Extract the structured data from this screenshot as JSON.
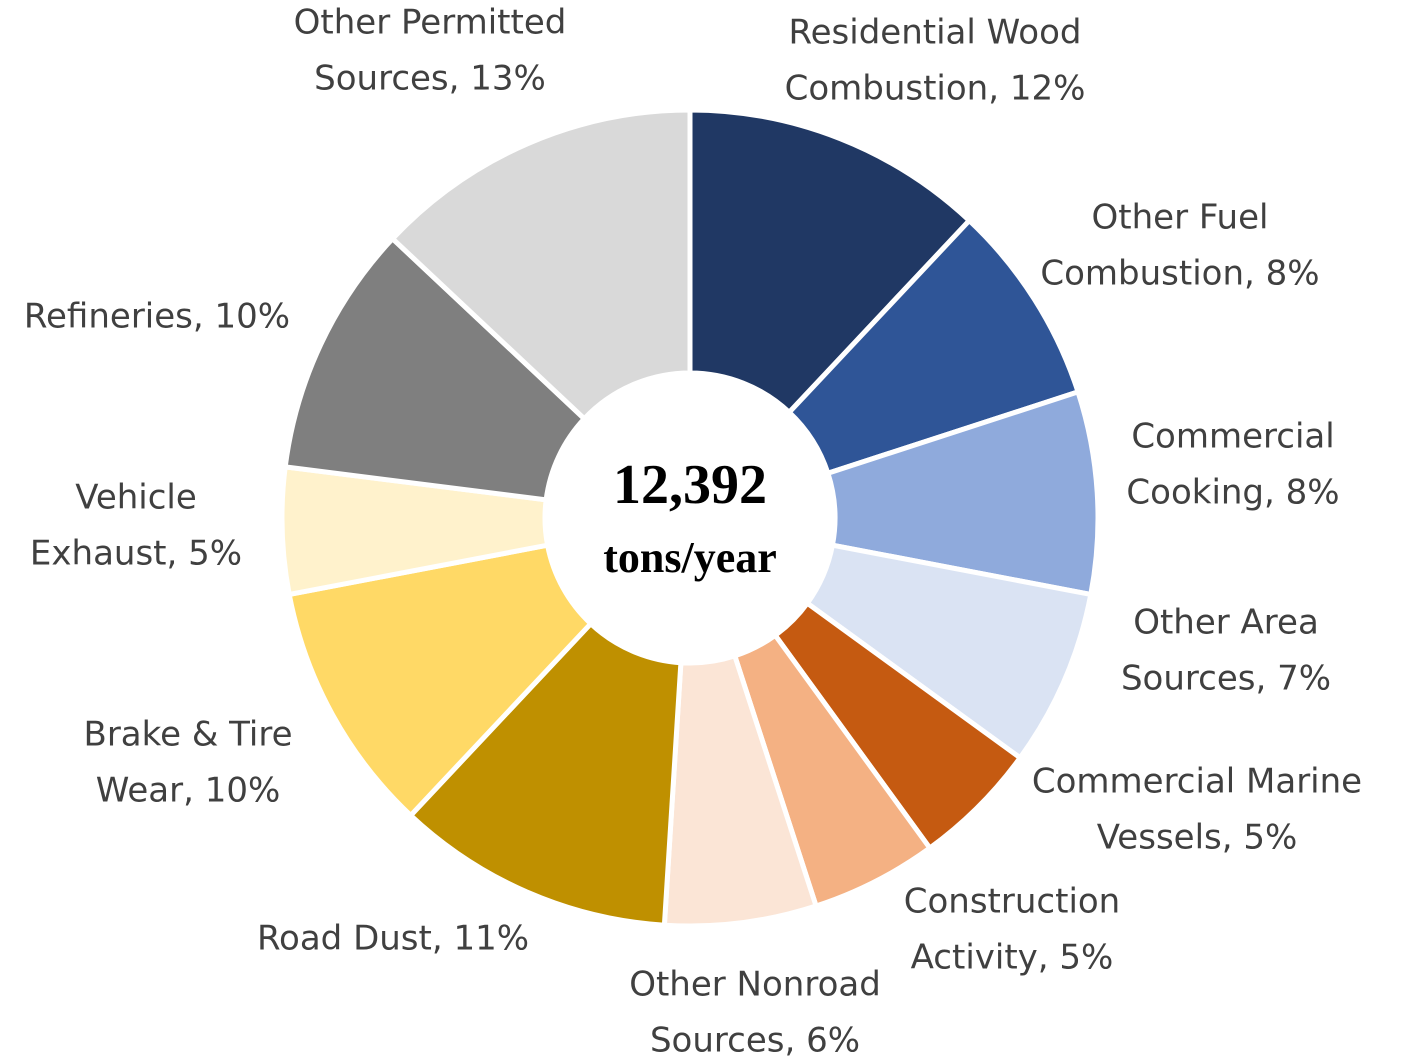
{
  "chart_data": {
    "type": "donut",
    "center_text": [
      "12,392",
      "tons/year"
    ],
    "categories": [
      [
        "Residential Wood",
        "Combustion, 12%"
      ],
      [
        "Other Fuel",
        "Combustion, 8%"
      ],
      [
        "Commercial",
        "Cooking, 8%"
      ],
      [
        "Other Area",
        "Sources, 7%"
      ],
      [
        "Commercial Marine",
        "Vessels, 5%"
      ],
      [
        "Construction",
        "Activity, 5%"
      ],
      [
        "Other Nonroad",
        "Sources, 6%"
      ],
      [
        "Road Dust, 11%"
      ],
      [
        "Brake & Tire",
        "Wear, 10%"
      ],
      [
        "Vehicle",
        "Exhaust, 5%"
      ],
      [
        "Refineries, 10%"
      ],
      [
        "Other Permitted",
        "Sources, 13%"
      ]
    ],
    "values": [
      12,
      8,
      8,
      7,
      5,
      5,
      6,
      11,
      10,
      5,
      10,
      13
    ],
    "colors": [
      "#203864",
      "#2f5597",
      "#8faadc",
      "#dae3f3",
      "#c55a11",
      "#f4b183",
      "#fbe5d6",
      "#bf9000",
      "#ffd966",
      "#fff2cc",
      "#7f7f7f",
      "#d9d9d9"
    ]
  }
}
